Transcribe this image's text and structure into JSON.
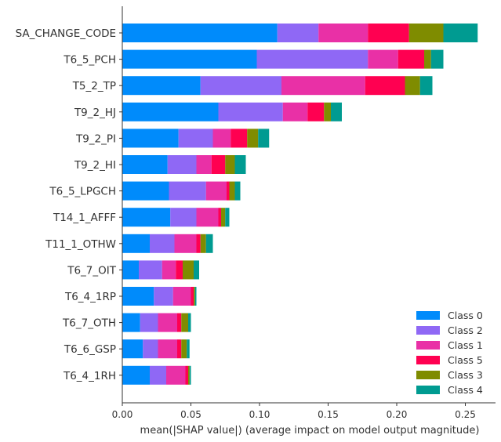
{
  "chart_data": {
    "type": "bar",
    "orientation": "horizontal",
    "stacked": true,
    "xlabel": "mean(|SHAP value|) (average impact on model output magnitude)",
    "xlim": [
      0,
      0.27
    ],
    "xticks": [
      "0.00",
      "0.05",
      "0.10",
      "0.15",
      "0.20",
      "0.25"
    ],
    "xtick_values": [
      0,
      0.05,
      0.1,
      0.15,
      0.2,
      0.25
    ],
    "grid": false,
    "legend_position": "lower-right",
    "categories": [
      "SA_CHANGE_CODE",
      "T6_5_PCH",
      "T5_2_TP",
      "T9_2_HJ",
      "T9_2_PI",
      "T9_2_HI",
      "T6_5_LPGCH",
      "T14_1_AFFF",
      "T11_1_OTHW",
      "T6_7_OIT",
      "T6_4_1RP",
      "T6_7_OTH",
      "T6_6_GSP",
      "T6_4_1RH"
    ],
    "series": [
      {
        "name": "Class 0",
        "color": "#008bfb",
        "values": [
          0.113,
          0.098,
          0.057,
          0.07,
          0.041,
          0.033,
          0.034,
          0.035,
          0.02,
          0.012,
          0.023,
          0.013,
          0.015,
          0.02
        ]
      },
      {
        "name": "Class 2",
        "color": "#8f68f5",
        "values": [
          0.03,
          0.081,
          0.059,
          0.047,
          0.025,
          0.021,
          0.027,
          0.019,
          0.018,
          0.017,
          0.014,
          0.013,
          0.011,
          0.012
        ]
      },
      {
        "name": "Class 1",
        "color": "#e930a6",
        "values": [
          0.036,
          0.022,
          0.061,
          0.018,
          0.013,
          0.011,
          0.015,
          0.016,
          0.016,
          0.01,
          0.013,
          0.014,
          0.014,
          0.014
        ]
      },
      {
        "name": "Class 5",
        "color": "#ff0051",
        "values": [
          0.03,
          0.019,
          0.029,
          0.012,
          0.012,
          0.01,
          0.002,
          0.002,
          0.003,
          0.005,
          0.002,
          0.003,
          0.003,
          0.002
        ]
      },
      {
        "name": "Class 3",
        "color": "#7f8c00",
        "values": [
          0.025,
          0.005,
          0.011,
          0.005,
          0.008,
          0.007,
          0.004,
          0.003,
          0.004,
          0.008,
          0.001,
          0.005,
          0.004,
          0.001
        ]
      },
      {
        "name": "Class 4",
        "color": "#009b91",
        "values": [
          0.025,
          0.009,
          0.009,
          0.008,
          0.008,
          0.008,
          0.004,
          0.003,
          0.005,
          0.004,
          0.001,
          0.002,
          0.002,
          0.001
        ]
      }
    ],
    "legend_order": [
      "Class 0",
      "Class 2",
      "Class 1",
      "Class 5",
      "Class 3",
      "Class 4"
    ]
  }
}
